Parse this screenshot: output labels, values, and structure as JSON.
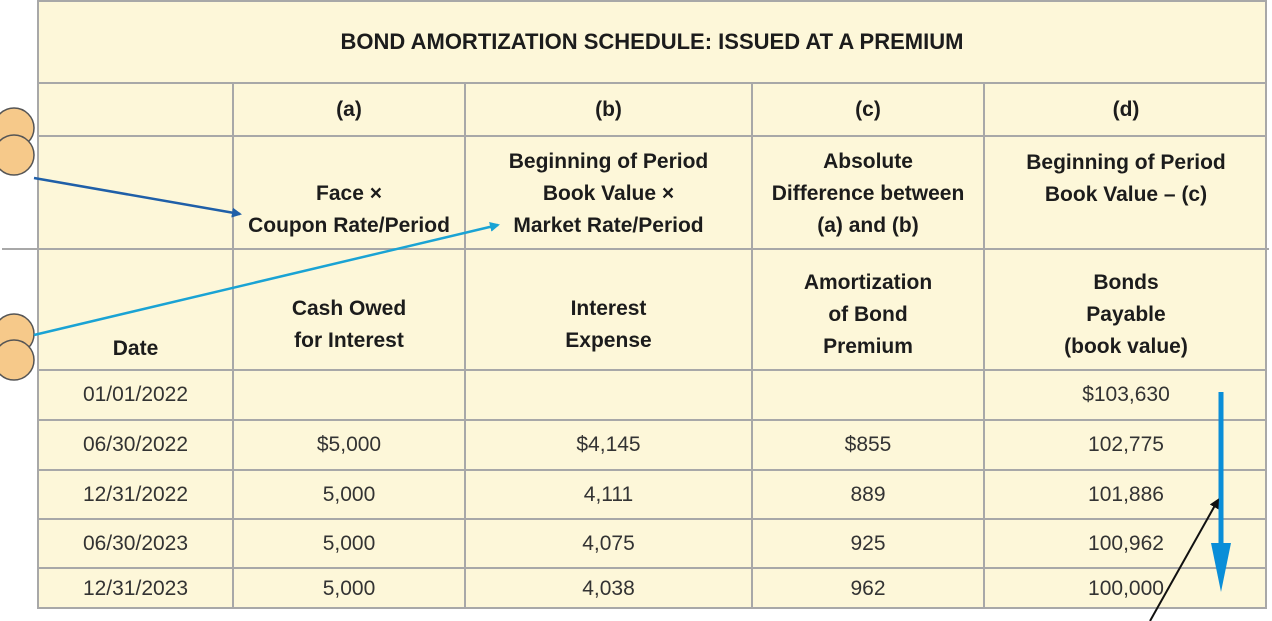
{
  "title": "BOND AMORTIZATION SCHEDULE: ISSUED AT A PREMIUM",
  "letters": [
    "(a)",
    "(b)",
    "(c)",
    "(d)"
  ],
  "formulas": {
    "a": [
      "Face ×",
      "Coupon Rate/Period"
    ],
    "b": [
      "Beginning of Period",
      "Book Value ×",
      "Market Rate/Period"
    ],
    "c": [
      "Absolute",
      "Difference between",
      "(a) and (b)"
    ],
    "d": [
      "Beginning of Period",
      "Book Value – (c)"
    ]
  },
  "columns": {
    "date": [
      "Date"
    ],
    "a": [
      "Cash Owed",
      "for Interest"
    ],
    "b": [
      "Interest",
      "Expense"
    ],
    "c": [
      "Amortization",
      "of Bond",
      "Premium"
    ],
    "d": [
      "Bonds",
      "Payable",
      "(book value)"
    ]
  },
  "rows": [
    {
      "date": "01/01/2022",
      "a": "",
      "b": "",
      "c": "",
      "d": "$103,630"
    },
    {
      "date": "06/30/2022",
      "a": "$5,000",
      "b": "$4,145",
      "c": "$855",
      "d": "102,775"
    },
    {
      "date": "12/31/2022",
      "a": "5,000",
      "b": "4,111",
      "c": "889",
      "d": "101,886"
    },
    {
      "date": "06/30/2023",
      "a": "5,000",
      "b": "4,075",
      "c": "925",
      "d": "100,962"
    },
    {
      "date": "12/31/2023",
      "a": "5,000",
      "b": "4,038",
      "c": "962",
      "d": "100,000"
    }
  ],
  "colors": {
    "background": "#fdf7d9",
    "grid": "#a8a8a8",
    "arrow_dark_blue": "#1f5fa8",
    "arrow_light_blue": "#1aa3d4",
    "arrow_blue": "#0a8ed8",
    "badge": "#f6c98a"
  }
}
